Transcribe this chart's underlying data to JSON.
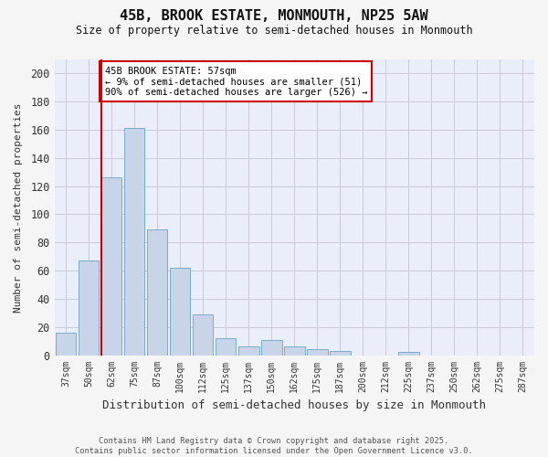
{
  "title": "45B, BROOK ESTATE, MONMOUTH, NP25 5AW",
  "subtitle": "Size of property relative to semi-detached houses in Monmouth",
  "xlabel": "Distribution of semi-detached houses by size in Monmouth",
  "ylabel": "Number of semi-detached properties",
  "categories": [
    "37sqm",
    "50sqm",
    "62sqm",
    "75sqm",
    "87sqm",
    "100sqm",
    "112sqm",
    "125sqm",
    "137sqm",
    "150sqm",
    "162sqm",
    "175sqm",
    "187sqm",
    "200sqm",
    "212sqm",
    "225sqm",
    "237sqm",
    "250sqm",
    "262sqm",
    "275sqm",
    "287sqm"
  ],
  "values": [
    16,
    67,
    126,
    161,
    89,
    62,
    29,
    12,
    6,
    11,
    6,
    4,
    3,
    0,
    0,
    2,
    0,
    0,
    0,
    0,
    0
  ],
  "bar_color": "#c8d4e8",
  "bar_edgecolor": "#7aaccc",
  "red_line_index": 2,
  "annotation_title": "45B BROOK ESTATE: 57sqm",
  "annotation_line1": "← 9% of semi-detached houses are smaller (51)",
  "annotation_line2": "90% of semi-detached houses are larger (526) →",
  "annotation_color": "#cc0000",
  "ylim": [
    0,
    210
  ],
  "yticks": [
    0,
    20,
    40,
    60,
    80,
    100,
    120,
    140,
    160,
    180,
    200
  ],
  "ax_background": "#eaedfa",
  "fig_background": "#f5f5f5",
  "grid_color": "#c8c8d8",
  "footer_line1": "Contains HM Land Registry data © Crown copyright and database right 2025.",
  "footer_line2": "Contains public sector information licensed under the Open Government Licence v3.0."
}
